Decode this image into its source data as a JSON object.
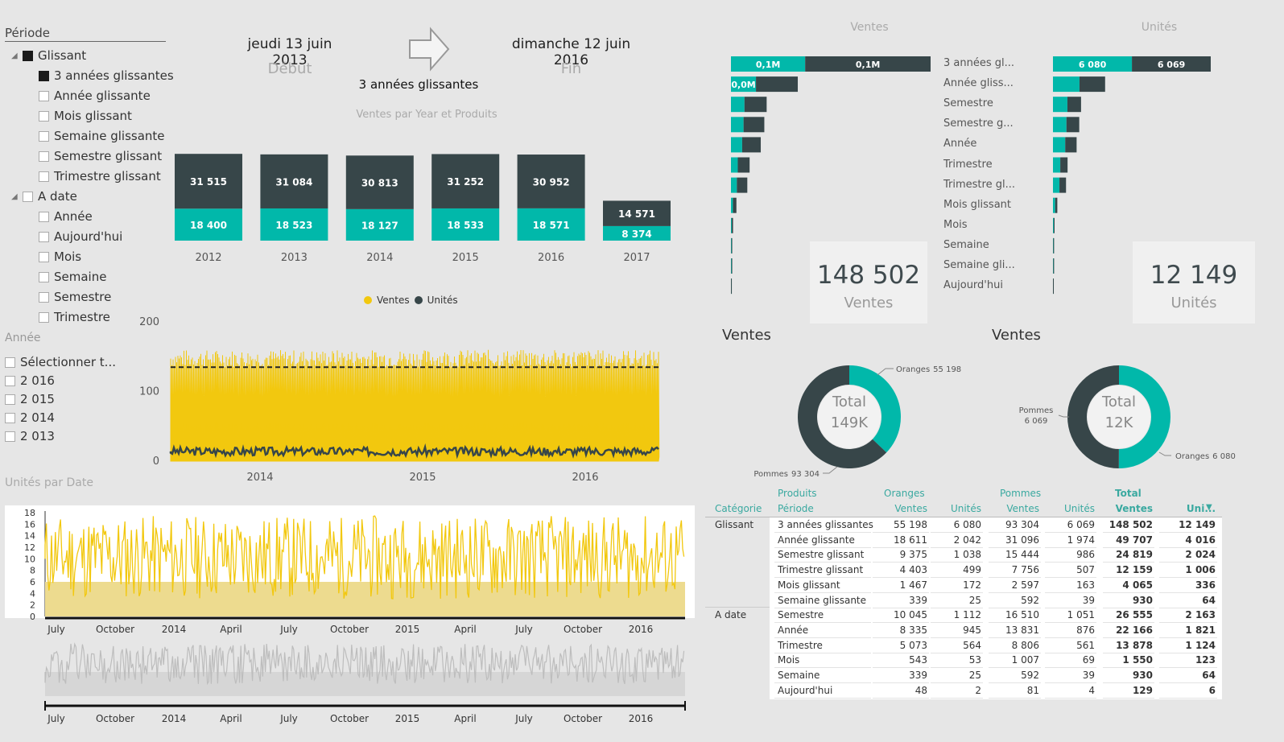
{
  "slicer": {
    "title": "Période",
    "groups": [
      {
        "label": "Glissant",
        "checked": true,
        "items": [
          {
            "label": "3 années glissantes",
            "checked": true
          },
          {
            "label": "Année glissante",
            "checked": false
          },
          {
            "label": "Mois glissant",
            "checked": false
          },
          {
            "label": "Semaine glissante",
            "checked": false
          },
          {
            "label": "Semestre glissant",
            "checked": false
          },
          {
            "label": "Trimestre glissant",
            "checked": false
          }
        ]
      },
      {
        "label": "A date",
        "checked": false,
        "items": [
          {
            "label": "Année",
            "checked": false
          },
          {
            "label": "Aujourd'hui",
            "checked": false
          },
          {
            "label": "Mois",
            "checked": false
          },
          {
            "label": "Semaine",
            "checked": false
          },
          {
            "label": "Semestre",
            "checked": false
          },
          {
            "label": "Trimestre",
            "checked": false
          }
        ]
      }
    ]
  },
  "year_slicer": {
    "title": "Année",
    "items": [
      "Sélectionner t...",
      "2 016",
      "2 015",
      "2 014",
      "2 013"
    ]
  },
  "header": {
    "start_date": "jeudi 13 juin 2013",
    "start_label": "Début",
    "end_date": "dimanche 12 juin 2016",
    "end_label": "Fin",
    "period": "3 années glissantes"
  },
  "colors": {
    "teal": "#01b8aa",
    "dark": "#374649",
    "yellow": "#f2c80f",
    "gray": "#bdbdbd"
  },
  "chart_data": [
    {
      "type": "bar",
      "title": "Ventes par Year et Produits",
      "categories": [
        "2012",
        "2013",
        "2014",
        "2015",
        "2016",
        "2017"
      ],
      "series": [
        {
          "values": [
            18400,
            18523,
            18127,
            18533,
            18571,
            8374
          ],
          "labels": [
            "18 400",
            "18 523",
            "18 127",
            "18 533",
            "18 571",
            "8 374"
          ]
        },
        {
          "values": [
            31515,
            31084,
            30813,
            31252,
            30952,
            14571
          ],
          "labels": [
            "31 515",
            "31 084",
            "30 813",
            "31 252",
            "30 952",
            "14 571"
          ]
        }
      ]
    },
    {
      "type": "line",
      "legend": [
        "Ventes",
        "Unités"
      ],
      "yticks": [
        "0",
        "100",
        "200"
      ],
      "ylim": [
        0,
        200
      ],
      "xticks": [
        "2014",
        "2015",
        "2016"
      ],
      "reference_line": 135,
      "series": [
        {
          "name": "Ventes",
          "range": [
            0,
            160
          ]
        },
        {
          "name": "Unités",
          "range": [
            10,
            20
          ]
        }
      ]
    },
    {
      "type": "area",
      "title": "Unités par Date",
      "yticks": [
        "0",
        "2",
        "4",
        "6",
        "8",
        "10",
        "12",
        "14",
        "16",
        "18"
      ],
      "ylim": [
        0,
        18
      ],
      "xticks": [
        "July",
        "October",
        "2014",
        "April",
        "July",
        "October",
        "2015",
        "April",
        "July",
        "October",
        "2016"
      ]
    },
    {
      "type": "bar",
      "title": "Ventes",
      "categories": [
        "3 années gl...",
        "Année gliss...",
        "Semestre",
        "Semestre g...",
        "Année",
        "Trimestre",
        "Trimestre gl...",
        "Mois glissant",
        "Mois",
        "Semaine",
        "Semaine gli...",
        "Aujourd'hui"
      ],
      "series": [
        {
          "values": [
            55198,
            18611,
            10045,
            9375,
            8335,
            5073,
            4403,
            1467,
            543,
            339,
            339,
            48
          ],
          "labels": [
            "0,1M",
            "0,0M",
            "",
            "",
            "",
            "",
            "",
            "",
            "",
            "",
            "",
            ""
          ]
        },
        {
          "values": [
            93304,
            31096,
            16510,
            15444,
            13831,
            8806,
            7756,
            2597,
            1007,
            592,
            592,
            81
          ],
          "labels": [
            "0,1M",
            "",
            "",
            "",
            "",
            "",
            "",
            "",
            "",
            "",
            "",
            ""
          ]
        }
      ]
    },
    {
      "type": "bar",
      "title": "Unités",
      "categories": [
        "3 années gl...",
        "Année gliss...",
        "Semestre",
        "Semestre g...",
        "Année",
        "Trimestre",
        "Trimestre gl...",
        "Mois glissant",
        "Mois",
        "Semaine",
        "Semaine gli...",
        "Aujourd'hui"
      ],
      "series": [
        {
          "values": [
            6080,
            2042,
            1112,
            1038,
            945,
            564,
            499,
            172,
            53,
            25,
            25,
            2
          ],
          "labels": [
            "6 080",
            "",
            "",
            "",
            "",
            "",
            "",
            "",
            "",
            "",
            "",
            ""
          ]
        },
        {
          "values": [
            6069,
            1974,
            1051,
            986,
            876,
            561,
            507,
            163,
            69,
            39,
            39,
            4
          ],
          "labels": [
            "6 069",
            "",
            "",
            "",
            "",
            "",
            "",
            "",
            "",
            "",
            "",
            ""
          ]
        }
      ]
    },
    {
      "type": "pie",
      "title": "Ventes",
      "total_label": "Total",
      "total_value": "149K",
      "slices": [
        {
          "name": "Oranges",
          "label": "55 198",
          "value": 55198
        },
        {
          "name": "Pommes",
          "label": "93 304",
          "value": 93304
        }
      ]
    },
    {
      "type": "pie",
      "title": "Ventes",
      "total_label": "Total",
      "total_value": "12K",
      "slices": [
        {
          "name": "Oranges",
          "label": "6 080",
          "value": 6080
        },
        {
          "name": "Pommes",
          "label": "6 069",
          "value": 6069
        }
      ]
    }
  ],
  "cards": [
    {
      "value": "148 502",
      "label": "Ventes"
    },
    {
      "value": "12 149",
      "label": "Unités"
    }
  ],
  "matrix": {
    "top_headers": {
      "produits": "Produits",
      "oranges": "Oranges",
      "pommes": "Pommes",
      "total": "Total"
    },
    "sub_headers": {
      "categorie": "Catégorie",
      "periode": "Période",
      "ventes": "Ventes",
      "unites": "Unités",
      "ventes_t": "Ventes",
      "unites_t": "Uni..."
    },
    "rows": [
      [
        "Glissant",
        "3 années glissantes",
        "55 198",
        "6 080",
        "93 304",
        "6 069",
        "148 502",
        "12 149"
      ],
      [
        "",
        "Année glissante",
        "18 611",
        "2 042",
        "31 096",
        "1 974",
        "49 707",
        "4 016"
      ],
      [
        "",
        "Semestre glissant",
        "9 375",
        "1 038",
        "15 444",
        "986",
        "24 819",
        "2 024"
      ],
      [
        "",
        "Trimestre glissant",
        "4 403",
        "499",
        "7 756",
        "507",
        "12 159",
        "1 006"
      ],
      [
        "",
        "Mois glissant",
        "1 467",
        "172",
        "2 597",
        "163",
        "4 065",
        "336"
      ],
      [
        "",
        "Semaine glissante",
        "339",
        "25",
        "592",
        "39",
        "930",
        "64"
      ],
      [
        "A date",
        "Semestre",
        "10 045",
        "1 112",
        "16 510",
        "1 051",
        "26 555",
        "2 163"
      ],
      [
        "",
        "Année",
        "8 335",
        "945",
        "13 831",
        "876",
        "22 166",
        "1 821"
      ],
      [
        "",
        "Trimestre",
        "5 073",
        "564",
        "8 806",
        "561",
        "13 878",
        "1 124"
      ],
      [
        "",
        "Mois",
        "543",
        "53",
        "1 007",
        "69",
        "1 550",
        "123"
      ],
      [
        "",
        "Semaine",
        "339",
        "25",
        "592",
        "39",
        "930",
        "64"
      ],
      [
        "",
        "Aujourd'hui",
        "48",
        "2",
        "81",
        "4",
        "129",
        "6"
      ]
    ]
  }
}
